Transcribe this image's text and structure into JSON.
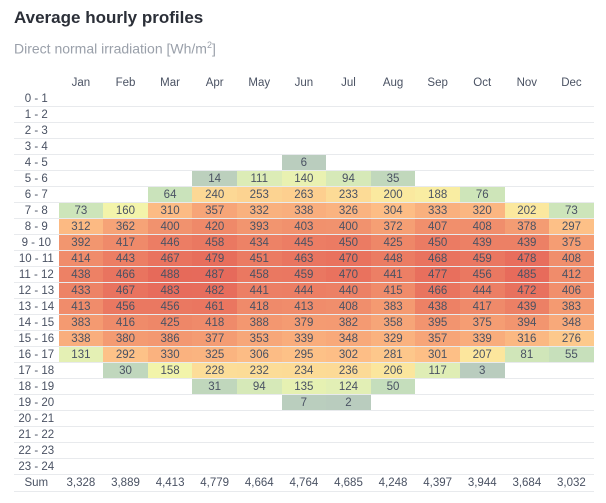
{
  "title": "Average hourly profiles",
  "subtitle": "Direct normal irradiation [Wh/m",
  "subtitle_sup": "2",
  "subtitle_end": "]",
  "chart_data": {
    "type": "heatmap",
    "title": "Average hourly profiles",
    "subtitle": "Direct normal irradiation [Wh/m2]",
    "columns": [
      "Jan",
      "Feb",
      "Mar",
      "Apr",
      "May",
      "Jun",
      "Jul",
      "Aug",
      "Sep",
      "Oct",
      "Nov",
      "Dec"
    ],
    "rows": [
      "0 - 1",
      "1 - 2",
      "2 - 3",
      "3 - 4",
      "4 - 5",
      "5 - 6",
      "6 - 7",
      "7 - 8",
      "8 - 9",
      "9 - 10",
      "10 - 11",
      "11 - 12",
      "12 - 13",
      "13 - 14",
      "14 - 15",
      "15 - 16",
      "16 - 17",
      "17 - 18",
      "18 - 19",
      "19 - 20",
      "20 - 21",
      "21 - 22",
      "22 - 23",
      "23 - 24"
    ],
    "values": [
      [
        null,
        null,
        null,
        null,
        null,
        null,
        null,
        null,
        null,
        null,
        null,
        null
      ],
      [
        null,
        null,
        null,
        null,
        null,
        null,
        null,
        null,
        null,
        null,
        null,
        null
      ],
      [
        null,
        null,
        null,
        null,
        null,
        null,
        null,
        null,
        null,
        null,
        null,
        null
      ],
      [
        null,
        null,
        null,
        null,
        null,
        null,
        null,
        null,
        null,
        null,
        null,
        null
      ],
      [
        null,
        null,
        null,
        null,
        null,
        6,
        null,
        null,
        null,
        null,
        null,
        null
      ],
      [
        null,
        null,
        null,
        14,
        111,
        140,
        94,
        35,
        null,
        null,
        null,
        null
      ],
      [
        null,
        null,
        64,
        240,
        253,
        263,
        233,
        200,
        188,
        76,
        null,
        null
      ],
      [
        73,
        160,
        310,
        357,
        332,
        338,
        326,
        304,
        333,
        320,
        202,
        73
      ],
      [
        312,
        362,
        400,
        420,
        393,
        403,
        400,
        372,
        407,
        408,
        378,
        297
      ],
      [
        392,
        417,
        446,
        458,
        434,
        445,
        450,
        425,
        450,
        439,
        439,
        375
      ],
      [
        414,
        443,
        467,
        479,
        451,
        463,
        470,
        448,
        468,
        459,
        478,
        408
      ],
      [
        438,
        466,
        488,
        487,
        458,
        459,
        470,
        441,
        477,
        456,
        485,
        412
      ],
      [
        433,
        467,
        483,
        482,
        441,
        444,
        440,
        415,
        466,
        444,
        472,
        406
      ],
      [
        413,
        456,
        456,
        461,
        418,
        413,
        408,
        383,
        438,
        417,
        439,
        383
      ],
      [
        383,
        416,
        425,
        418,
        388,
        379,
        382,
        358,
        395,
        375,
        394,
        348
      ],
      [
        338,
        380,
        386,
        377,
        353,
        339,
        348,
        329,
        357,
        339,
        316,
        276
      ],
      [
        131,
        292,
        330,
        325,
        306,
        295,
        302,
        281,
        301,
        207,
        81,
        55
      ],
      [
        null,
        30,
        158,
        228,
        232,
        234,
        236,
        206,
        117,
        3,
        null,
        null
      ],
      [
        null,
        null,
        null,
        31,
        94,
        135,
        124,
        50,
        null,
        null,
        null,
        null
      ],
      [
        null,
        null,
        null,
        null,
        null,
        7,
        2,
        null,
        null,
        null,
        null,
        null
      ],
      [
        null,
        null,
        null,
        null,
        null,
        null,
        null,
        null,
        null,
        null,
        null,
        null
      ],
      [
        null,
        null,
        null,
        null,
        null,
        null,
        null,
        null,
        null,
        null,
        null,
        null
      ],
      [
        null,
        null,
        null,
        null,
        null,
        null,
        null,
        null,
        null,
        null,
        null,
        null
      ],
      [
        null,
        null,
        null,
        null,
        null,
        null,
        null,
        null,
        null,
        null,
        null,
        null
      ]
    ],
    "sum_label": "Sum",
    "sums": [
      "3,328",
      "3,889",
      "4,413",
      "4,779",
      "4,664",
      "4,764",
      "4,685",
      "4,248",
      "4,397",
      "3,944",
      "3,684",
      "3,032"
    ],
    "color_scale": [
      {
        "value": 0,
        "color": "#b8cbbe"
      },
      {
        "value": 60,
        "color": "#c8e2bb"
      },
      {
        "value": 130,
        "color": "#e4f0b4"
      },
      {
        "value": 165,
        "color": "#f5f5a8"
      },
      {
        "value": 210,
        "color": "#fce59c"
      },
      {
        "value": 300,
        "color": "#fdbf86"
      },
      {
        "value": 380,
        "color": "#f49b72"
      },
      {
        "value": 490,
        "color": "#e6695a"
      }
    ]
  }
}
